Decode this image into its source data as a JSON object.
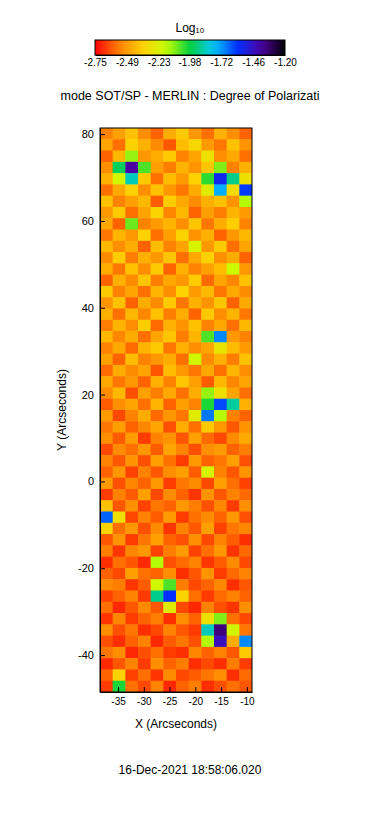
{
  "chart_data": {
    "type": "heatmap",
    "title": "mode SOT/SP - MERLIN : Degree of Polarizati",
    "x_label": "X (Arcseconds)",
    "y_label": "Y (Arcseconds)",
    "xlim": [
      -38.5,
      -9
    ],
    "ylim": [
      -48.5,
      81.4
    ],
    "xticks": [
      -35,
      -30,
      -25,
      -20,
      -15,
      -10
    ],
    "yticks": [
      -40,
      -20,
      0,
      20,
      40,
      60,
      80
    ],
    "colorbar": {
      "label": "Log₁₀",
      "range": [
        -2.75,
        -1.2
      ],
      "ticks": [
        -2.75,
        -2.49,
        -2.23,
        -1.98,
        -1.72,
        -1.46,
        {
          "value": -1.2,
          "label": "-1.20"
        }
      ]
    },
    "annotations": [
      "16-Dec-2021 18:58:06.020"
    ],
    "z": [
      [
        -2.55,
        -2.48,
        -2.4,
        -2.52,
        -2.6,
        -2.45,
        -2.38,
        -2.5,
        -2.58,
        -2.44,
        -2.52,
        -2.6
      ],
      [
        -2.47,
        -2.58,
        -2.36,
        -2.44,
        -2.53,
        -2.62,
        -2.41,
        -2.33,
        -2.49,
        -2.57,
        -2.4,
        -2.51
      ],
      [
        -2.6,
        -2.42,
        -2.12,
        -2.5,
        -2.45,
        -2.38,
        -2.55,
        -2.47,
        -2.3,
        -2.52,
        -2.46,
        -2.58
      ],
      [
        -2.52,
        -1.95,
        -1.4,
        -2.05,
        -2.48,
        -2.56,
        -2.43,
        -2.51,
        -2.39,
        -2.1,
        -2.55,
        -2.44
      ],
      [
        -2.44,
        -2.2,
        -1.85,
        -2.38,
        -2.58,
        -2.41,
        -2.49,
        -2.36,
        -2.02,
        -1.55,
        -1.9,
        -2.3
      ],
      [
        -2.58,
        -2.46,
        -2.35,
        -2.52,
        -2.4,
        -2.5,
        -2.57,
        -2.45,
        -2.25,
        -1.75,
        -2.32,
        -1.6
      ],
      [
        -2.4,
        -2.55,
        -2.48,
        -2.42,
        -2.61,
        -2.37,
        -2.46,
        -2.53,
        -2.44,
        -2.4,
        -2.51,
        -2.15
      ],
      [
        -2.5,
        -2.38,
        -2.58,
        -2.47,
        -2.35,
        -2.54,
        -2.42,
        -2.6,
        -2.48,
        -2.56,
        -2.43,
        -2.49
      ],
      [
        -2.46,
        -2.6,
        -2.08,
        -2.55,
        -2.49,
        -2.43,
        -2.52,
        -2.39,
        -2.57,
        -2.45,
        -2.37,
        -2.55
      ],
      [
        -2.57,
        -2.43,
        -2.5,
        -2.36,
        -2.58,
        -2.48,
        -2.35,
        -2.51,
        -2.44,
        -2.6,
        -2.5,
        -2.42
      ],
      [
        -2.42,
        -2.52,
        -2.45,
        -2.6,
        -2.41,
        -2.55,
        -2.47,
        -2.22,
        -2.5,
        -2.38,
        -2.58,
        -2.47
      ],
      [
        -2.53,
        -2.37,
        -2.56,
        -2.44,
        -2.5,
        -2.39,
        -2.58,
        -2.46,
        -2.36,
        -2.52,
        -2.45,
        -2.6
      ],
      [
        -2.45,
        -2.57,
        -2.4,
        -2.52,
        -2.38,
        -2.6,
        -2.44,
        -2.55,
        -2.48,
        -2.41,
        -2.18,
        -2.5
      ],
      [
        -2.6,
        -2.44,
        -2.53,
        -2.39,
        -2.56,
        -2.46,
        -2.5,
        -2.37,
        -2.59,
        -2.47,
        -2.54,
        -2.4
      ],
      [
        -2.38,
        -2.55,
        -2.47,
        -2.58,
        -2.43,
        -2.52,
        -2.36,
        -2.49,
        -2.42,
        -2.57,
        -2.46,
        -2.53
      ],
      [
        -2.51,
        -2.4,
        -2.6,
        -2.45,
        -2.53,
        -2.38,
        -2.57,
        -2.44,
        -2.51,
        -2.39,
        -2.6,
        -2.46
      ],
      [
        -2.44,
        -2.58,
        -2.42,
        -2.54,
        -2.4,
        -2.56,
        -2.45,
        -2.6,
        -2.38,
        -2.52,
        -2.43,
        -2.57
      ],
      [
        -2.56,
        -2.43,
        -2.52,
        -2.37,
        -2.59,
        -2.44,
        -2.51,
        -2.4,
        -2.55,
        -2.46,
        -2.58,
        -2.42
      ],
      [
        -2.42,
        -2.54,
        -2.45,
        -2.58,
        -2.47,
        -2.39,
        -2.56,
        -2.43,
        -2.05,
        -1.7,
        -2.5,
        -2.55
      ],
      [
        -2.55,
        -2.46,
        -2.59,
        -2.43,
        -2.38,
        -2.57,
        -2.44,
        -2.52,
        -2.47,
        -2.28,
        -2.41,
        -2.49
      ],
      [
        -2.48,
        -2.6,
        -2.41,
        -2.55,
        -2.5,
        -2.45,
        -2.58,
        -2.2,
        -2.53,
        -2.44,
        -2.56,
        -2.4
      ],
      [
        -2.59,
        -2.45,
        -2.53,
        -2.47,
        -2.62,
        -2.41,
        -2.5,
        -2.57,
        -2.46,
        -2.58,
        -2.43,
        -2.52
      ],
      [
        -2.46,
        -2.57,
        -2.5,
        -2.6,
        -2.44,
        -2.55,
        -2.39,
        -2.48,
        -2.61,
        -2.42,
        -2.54,
        -2.47
      ],
      [
        -2.53,
        -2.42,
        -2.63,
        -2.48,
        -2.56,
        -2.46,
        -2.58,
        -2.45,
        -2.12,
        -2.3,
        -2.47,
        -2.58
      ],
      [
        -2.61,
        -2.52,
        -2.47,
        -2.58,
        -2.43,
        -2.6,
        -2.48,
        -2.55,
        -2.0,
        -1.62,
        -1.88,
        -2.44
      ],
      [
        -2.49,
        -2.64,
        -2.55,
        -2.45,
        -2.59,
        -2.5,
        -2.57,
        -2.25,
        -1.68,
        -2.15,
        -2.55,
        -2.6
      ],
      [
        -2.57,
        -2.48,
        -2.6,
        -2.54,
        -2.47,
        -2.63,
        -2.45,
        -2.58,
        -2.38,
        -2.5,
        -2.62,
        -2.51
      ],
      [
        -2.52,
        -2.61,
        -2.49,
        -2.66,
        -2.55,
        -2.51,
        -2.62,
        -2.48,
        -2.59,
        -2.64,
        -2.53,
        -2.46
      ],
      [
        -2.64,
        -2.53,
        -2.58,
        -2.5,
        -2.61,
        -2.47,
        -2.55,
        -2.63,
        -2.52,
        -2.49,
        -2.6,
        -2.56
      ],
      [
        -2.55,
        -2.62,
        -2.51,
        -2.63,
        -2.48,
        -2.58,
        -2.66,
        -2.5,
        -2.6,
        -2.57,
        -2.48,
        -2.63
      ],
      [
        -2.6,
        -2.5,
        -2.65,
        -2.55,
        -2.62,
        -2.52,
        -2.48,
        -2.61,
        -2.22,
        -2.55,
        -2.62,
        -2.51
      ],
      [
        -2.49,
        -2.63,
        -2.54,
        -2.6,
        -2.5,
        -2.66,
        -2.57,
        -2.53,
        -2.64,
        -2.48,
        -2.58,
        -2.65
      ],
      [
        -2.66,
        -2.55,
        -2.61,
        -2.48,
        -2.64,
        -2.53,
        -2.6,
        -2.67,
        -2.51,
        -2.62,
        -2.55,
        -2.59
      ],
      [
        -2.4,
        -2.62,
        -2.52,
        -2.65,
        -2.57,
        -2.6,
        -2.5,
        -2.56,
        -2.63,
        -2.54,
        -2.66,
        -2.52
      ],
      [
        -1.65,
        -2.3,
        -2.64,
        -2.55,
        -2.61,
        -2.49,
        -2.66,
        -2.58,
        -2.53,
        -2.6,
        -2.5,
        -2.63
      ],
      [
        -2.35,
        -2.58,
        -2.5,
        -2.63,
        -2.53,
        -2.67,
        -2.55,
        -2.62,
        -2.48,
        -2.65,
        -2.57,
        -2.54
      ],
      [
        -2.62,
        -2.51,
        -2.66,
        -2.57,
        -2.48,
        -2.6,
        -2.63,
        -2.52,
        -2.64,
        -2.55,
        -2.61,
        -2.68
      ],
      [
        -2.56,
        -2.67,
        -2.54,
        -2.5,
        -2.65,
        -2.56,
        -2.49,
        -2.65,
        -2.58,
        -2.5,
        -2.67,
        -2.59
      ],
      [
        -2.68,
        -2.58,
        -2.62,
        -2.69,
        -2.15,
        -2.63,
        -2.59,
        -2.55,
        -2.67,
        -2.61,
        -2.53,
        -2.64
      ],
      [
        -2.6,
        -2.64,
        -2.48,
        -2.58,
        -2.6,
        -2.52,
        -2.68,
        -2.62,
        -2.51,
        -2.66,
        -2.59,
        -2.55
      ],
      [
        -2.53,
        -2.56,
        -2.67,
        -2.61,
        -2.2,
        -2.05,
        -2.56,
        -2.64,
        -2.6,
        -2.54,
        -2.68,
        -2.62
      ],
      [
        -2.65,
        -2.6,
        -2.55,
        -2.66,
        -1.9,
        -1.58,
        -2.35,
        -2.58,
        -2.66,
        -2.59,
        -2.55,
        -2.6
      ],
      [
        -2.58,
        -2.69,
        -2.62,
        -2.53,
        -2.62,
        -2.25,
        -2.64,
        -2.69,
        -2.55,
        -2.63,
        -2.67,
        -2.52
      ],
      [
        -2.67,
        -2.54,
        -2.66,
        -2.6,
        -2.56,
        -2.68,
        -2.52,
        -2.6,
        -2.3,
        -2.1,
        -2.58,
        -2.64
      ],
      [
        -2.52,
        -2.63,
        -2.57,
        -2.68,
        -2.64,
        -2.55,
        -2.62,
        -2.66,
        -1.85,
        -1.35,
        -2.2,
        -2.57
      ],
      [
        -2.63,
        -2.68,
        -2.6,
        -2.55,
        -2.69,
        -2.61,
        -2.57,
        -2.63,
        -2.15,
        -1.45,
        -2.45,
        -1.7
      ],
      [
        -2.57,
        -2.52,
        -2.69,
        -2.63,
        -2.58,
        -2.66,
        -2.68,
        -2.54,
        -2.6,
        -2.55,
        -2.62,
        -2.38
      ],
      [
        -2.69,
        -2.62,
        -2.55,
        -2.66,
        -2.52,
        -2.6,
        -2.56,
        -2.68,
        -2.64,
        -2.68,
        -2.56,
        -2.66
      ],
      [
        -2.6,
        -2.35,
        -2.65,
        -2.58,
        -2.67,
        -2.53,
        -2.64,
        -2.61,
        -2.57,
        -2.52,
        -2.68,
        -2.59
      ],
      [
        -2.66,
        -2.0,
        -2.58,
        -2.64,
        -2.55,
        -2.69,
        -2.6,
        -2.56,
        -2.68,
        -2.63,
        -2.58,
        -2.62
      ]
    ]
  }
}
